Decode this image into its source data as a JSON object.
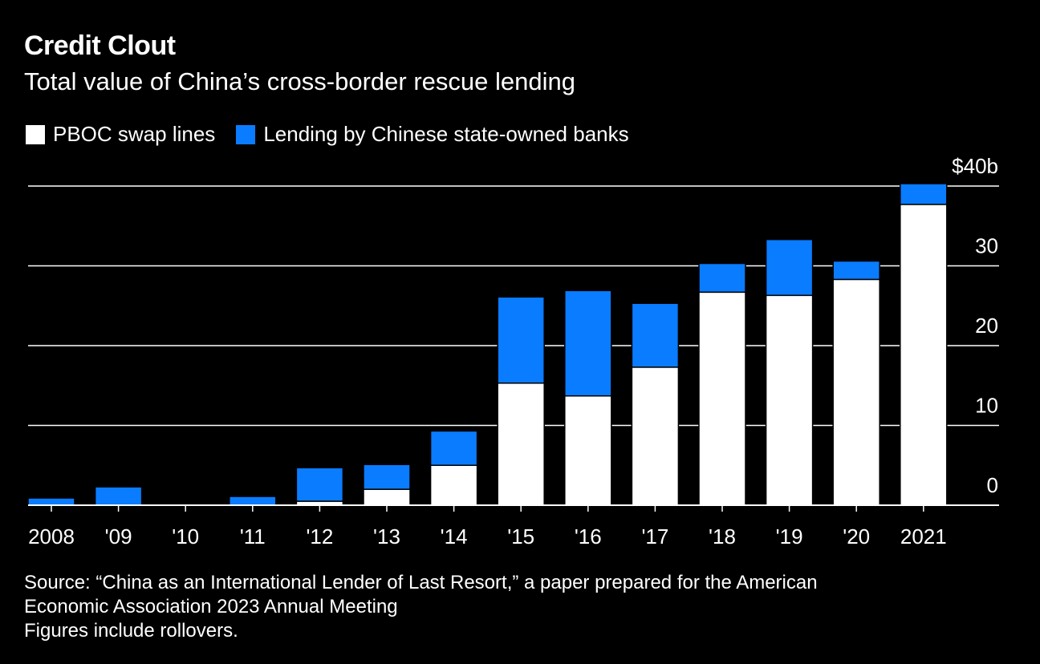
{
  "title": "Credit Clout",
  "subtitle": "Total value of China’s cross-border rescue lending",
  "legend": [
    {
      "label": "PBOC swap lines",
      "color": "#ffffff"
    },
    {
      "label": "Lending by Chinese state-owned banks",
      "color": "#0a7cff"
    }
  ],
  "source": {
    "line1": "Source: “China as an International Lender of Last Resort,” a paper prepared for the American",
    "line2": "Economic Association 2023 Annual Meeting",
    "line3": "Figures include rollovers."
  },
  "chart_data": {
    "type": "bar",
    "stacked": true,
    "categories": [
      "2008",
      "'09",
      "'10",
      "'11",
      "'12",
      "'13",
      "'14",
      "'15",
      "'16",
      "'17",
      "'18",
      "'19",
      "'20",
      "2021"
    ],
    "series": [
      {
        "name": "PBOC swap lines",
        "color": "#ffffff",
        "values": [
          0,
          0,
          0,
          0,
          0.5,
          2,
          5,
          15.3,
          13.7,
          17.3,
          26.7,
          26.3,
          28.3,
          37.7
        ]
      },
      {
        "name": "Lending by Chinese state-owned banks",
        "color": "#0a7cff",
        "values": [
          0.9,
          2.3,
          0,
          1.1,
          4.2,
          3.1,
          4.3,
          10.8,
          13.2,
          8.0,
          3.6,
          7.0,
          2.3,
          2.6
        ]
      }
    ],
    "ylim": [
      0,
      40
    ],
    "yticks": [
      0,
      10,
      20,
      30,
      40
    ],
    "ytick_labels": [
      "0",
      "10",
      "20",
      "30",
      "$40b"
    ],
    "y_axis_side": "right",
    "grid": true,
    "legend_position": "top-left"
  }
}
